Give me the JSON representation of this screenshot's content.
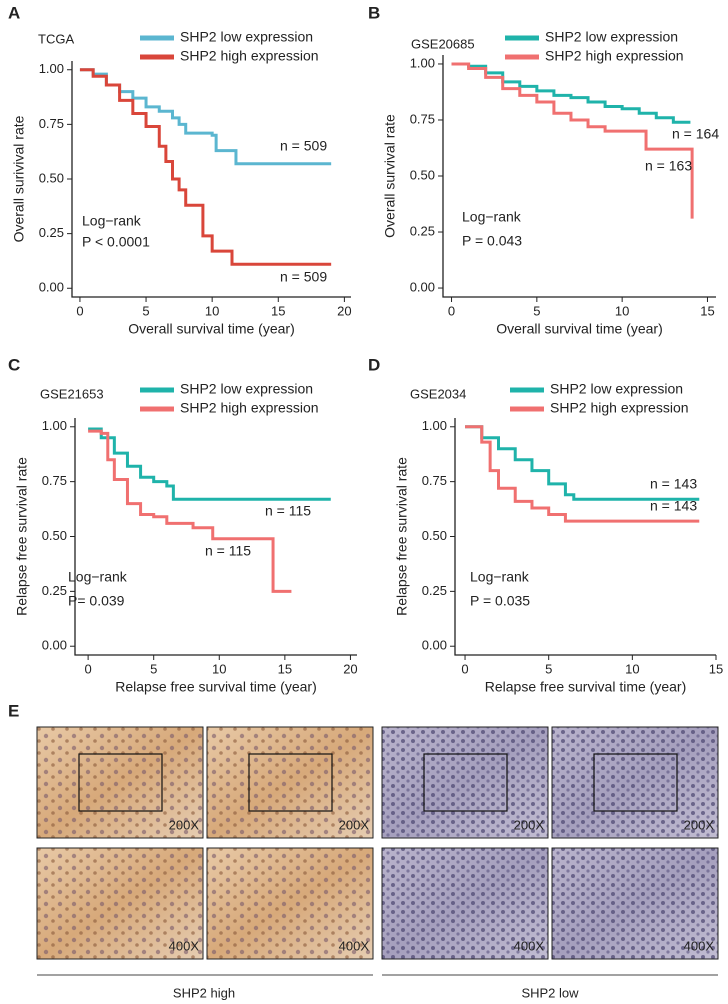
{
  "chart_data": [
    {
      "type": "step",
      "panel": "A",
      "title": "TCGA",
      "xlabel": "Overall survival time (year)",
      "ylabel": "Overall surivival rate",
      "xlim": [
        -0.6,
        20.5
      ],
      "ylim": [
        -0.04,
        1.04
      ],
      "xticks": [
        0,
        5,
        10,
        15,
        20
      ],
      "yticks": [
        {
          "value": 0,
          "label": "0.00"
        },
        {
          "value": 0.25,
          "label": "0.25"
        },
        {
          "value": 0.5,
          "label": "0.50"
        },
        {
          "value": 0.75,
          "label": "0.75"
        },
        {
          "value": 1,
          "label": "1.00"
        }
      ],
      "annotations": [
        "Log−rank",
        "P < 0.0001",
        "n = 509",
        "n = 509"
      ],
      "series": [
        {
          "name": "SHP2 low expression",
          "color": "#5bb6d0",
          "x": [
            0,
            1,
            2,
            3,
            4,
            5,
            6,
            7,
            7.5,
            8,
            10,
            10.3,
            11.8,
            19
          ],
          "values": [
            1,
            0.98,
            0.93,
            0.9,
            0.87,
            0.83,
            0.81,
            0.78,
            0.75,
            0.71,
            0.7,
            0.63,
            0.57,
            0.57
          ]
        },
        {
          "name": "SHP2 high expression",
          "color": "#d9463a",
          "x": [
            0,
            1,
            2,
            3,
            4,
            5,
            6,
            6.5,
            7,
            7.5,
            8,
            9,
            9.3,
            10,
            11.5,
            19
          ],
          "values": [
            1,
            0.97,
            0.93,
            0.86,
            0.8,
            0.74,
            0.65,
            0.58,
            0.5,
            0.45,
            0.38,
            0.38,
            0.24,
            0.17,
            0.11,
            0.11
          ]
        }
      ]
    },
    {
      "type": "step",
      "panel": "B",
      "title": "GSE20685",
      "xlabel": "Overall survival time (year)",
      "ylabel": "Overall survival rate",
      "xlim": [
        -0.5,
        15.5
      ],
      "ylim": [
        -0.04,
        1.04
      ],
      "xticks": [
        0,
        5,
        10,
        15
      ],
      "yticks": [
        {
          "value": 0,
          "label": "0.00"
        },
        {
          "value": 0.25,
          "label": "0.25"
        },
        {
          "value": 0.5,
          "label": "0.50"
        },
        {
          "value": 0.75,
          "label": "0.75"
        },
        {
          "value": 1,
          "label": "1.00"
        }
      ],
      "annotations": [
        "Log−rank",
        "P = 0.043",
        "n = 164",
        "n = 163"
      ],
      "series": [
        {
          "name": "SHP2 low expression",
          "color": "#1fb3aa",
          "x": [
            0,
            1,
            2,
            3,
            4,
            5,
            6,
            7,
            8,
            9,
            10,
            11,
            12,
            13,
            14
          ],
          "values": [
            1,
            0.99,
            0.96,
            0.92,
            0.9,
            0.88,
            0.86,
            0.85,
            0.83,
            0.81,
            0.8,
            0.78,
            0.76,
            0.74,
            0.74
          ]
        },
        {
          "name": "SHP2 high expression",
          "color": "#f07070",
          "x": [
            0,
            1,
            2,
            3,
            4,
            5,
            6,
            7,
            8,
            9,
            10,
            11.3,
            11.4,
            14,
            14.1
          ],
          "values": [
            1,
            0.98,
            0.94,
            0.89,
            0.86,
            0.83,
            0.78,
            0.75,
            0.72,
            0.7,
            0.7,
            0.7,
            0.62,
            0.62,
            0.31
          ]
        }
      ]
    },
    {
      "type": "step",
      "panel": "C",
      "title": "GSE21653",
      "xlabel": "Relapse free survival time (year)",
      "ylabel": "Relapse free survival rate",
      "xlim": [
        -1,
        20.5
      ],
      "ylim": [
        -0.04,
        1.04
      ],
      "xticks": [
        0,
        5,
        10,
        15,
        20
      ],
      "yticks": [
        {
          "value": 0,
          "label": "0.00"
        },
        {
          "value": 0.25,
          "label": "0.25"
        },
        {
          "value": 0.5,
          "label": "0.50"
        },
        {
          "value": 0.75,
          "label": "0.75"
        },
        {
          "value": 1,
          "label": "1.00"
        }
      ],
      "annotations": [
        "Log−rank",
        "P= 0.039",
        "n = 115",
        "n = 115"
      ],
      "series": [
        {
          "name": "SHP2 low expression",
          "color": "#1fb3aa",
          "x": [
            0,
            1,
            2,
            3,
            4,
            5,
            6,
            6.5,
            18.5
          ],
          "values": [
            0.99,
            0.95,
            0.88,
            0.82,
            0.77,
            0.75,
            0.73,
            0.67,
            0.67
          ]
        },
        {
          "name": "SHP2 high expression",
          "color": "#f07070",
          "x": [
            0,
            1,
            1.5,
            2,
            3,
            4,
            5,
            6,
            8,
            9.5,
            14,
            14.1,
            15.5
          ],
          "values": [
            0.98,
            0.97,
            0.85,
            0.76,
            0.65,
            0.6,
            0.59,
            0.56,
            0.54,
            0.49,
            0.49,
            0.25,
            0.25
          ]
        }
      ]
    },
    {
      "type": "step",
      "panel": "D",
      "title": "GSE2034",
      "xlabel": "Relapse free survival time (year)",
      "ylabel": "Relapse free survival rate",
      "xlim": [
        -0.6,
        15
      ],
      "ylim": [
        -0.04,
        1.04
      ],
      "xticks": [
        0,
        5,
        10,
        15
      ],
      "yticks": [
        {
          "value": 0,
          "label": "0.00"
        },
        {
          "value": 0.25,
          "label": "0.25"
        },
        {
          "value": 0.5,
          "label": "0.50"
        },
        {
          "value": 0.75,
          "label": "0.75"
        },
        {
          "value": 1,
          "label": "1.00"
        }
      ],
      "annotations": [
        "Log−rank",
        "P = 0.035",
        "n = 143",
        "n = 143"
      ],
      "series": [
        {
          "name": "SHP2 low expression",
          "color": "#1fb3aa",
          "x": [
            0,
            1,
            2,
            3,
            4,
            5,
            6,
            6.5,
            14
          ],
          "values": [
            1,
            0.95,
            0.9,
            0.85,
            0.8,
            0.74,
            0.69,
            0.67,
            0.67
          ]
        },
        {
          "name": "SHP2 high expression",
          "color": "#f07070",
          "x": [
            0,
            1,
            1.5,
            2,
            3,
            4,
            5,
            6,
            14
          ],
          "values": [
            1,
            0.93,
            0.8,
            0.72,
            0.66,
            0.63,
            0.6,
            0.57,
            0.57
          ]
        }
      ]
    }
  ],
  "panel_e": {
    "panel": "E",
    "magnifications": [
      "200X",
      "400X"
    ],
    "groups": [
      "SHP2 high",
      "SHP2 low"
    ]
  }
}
